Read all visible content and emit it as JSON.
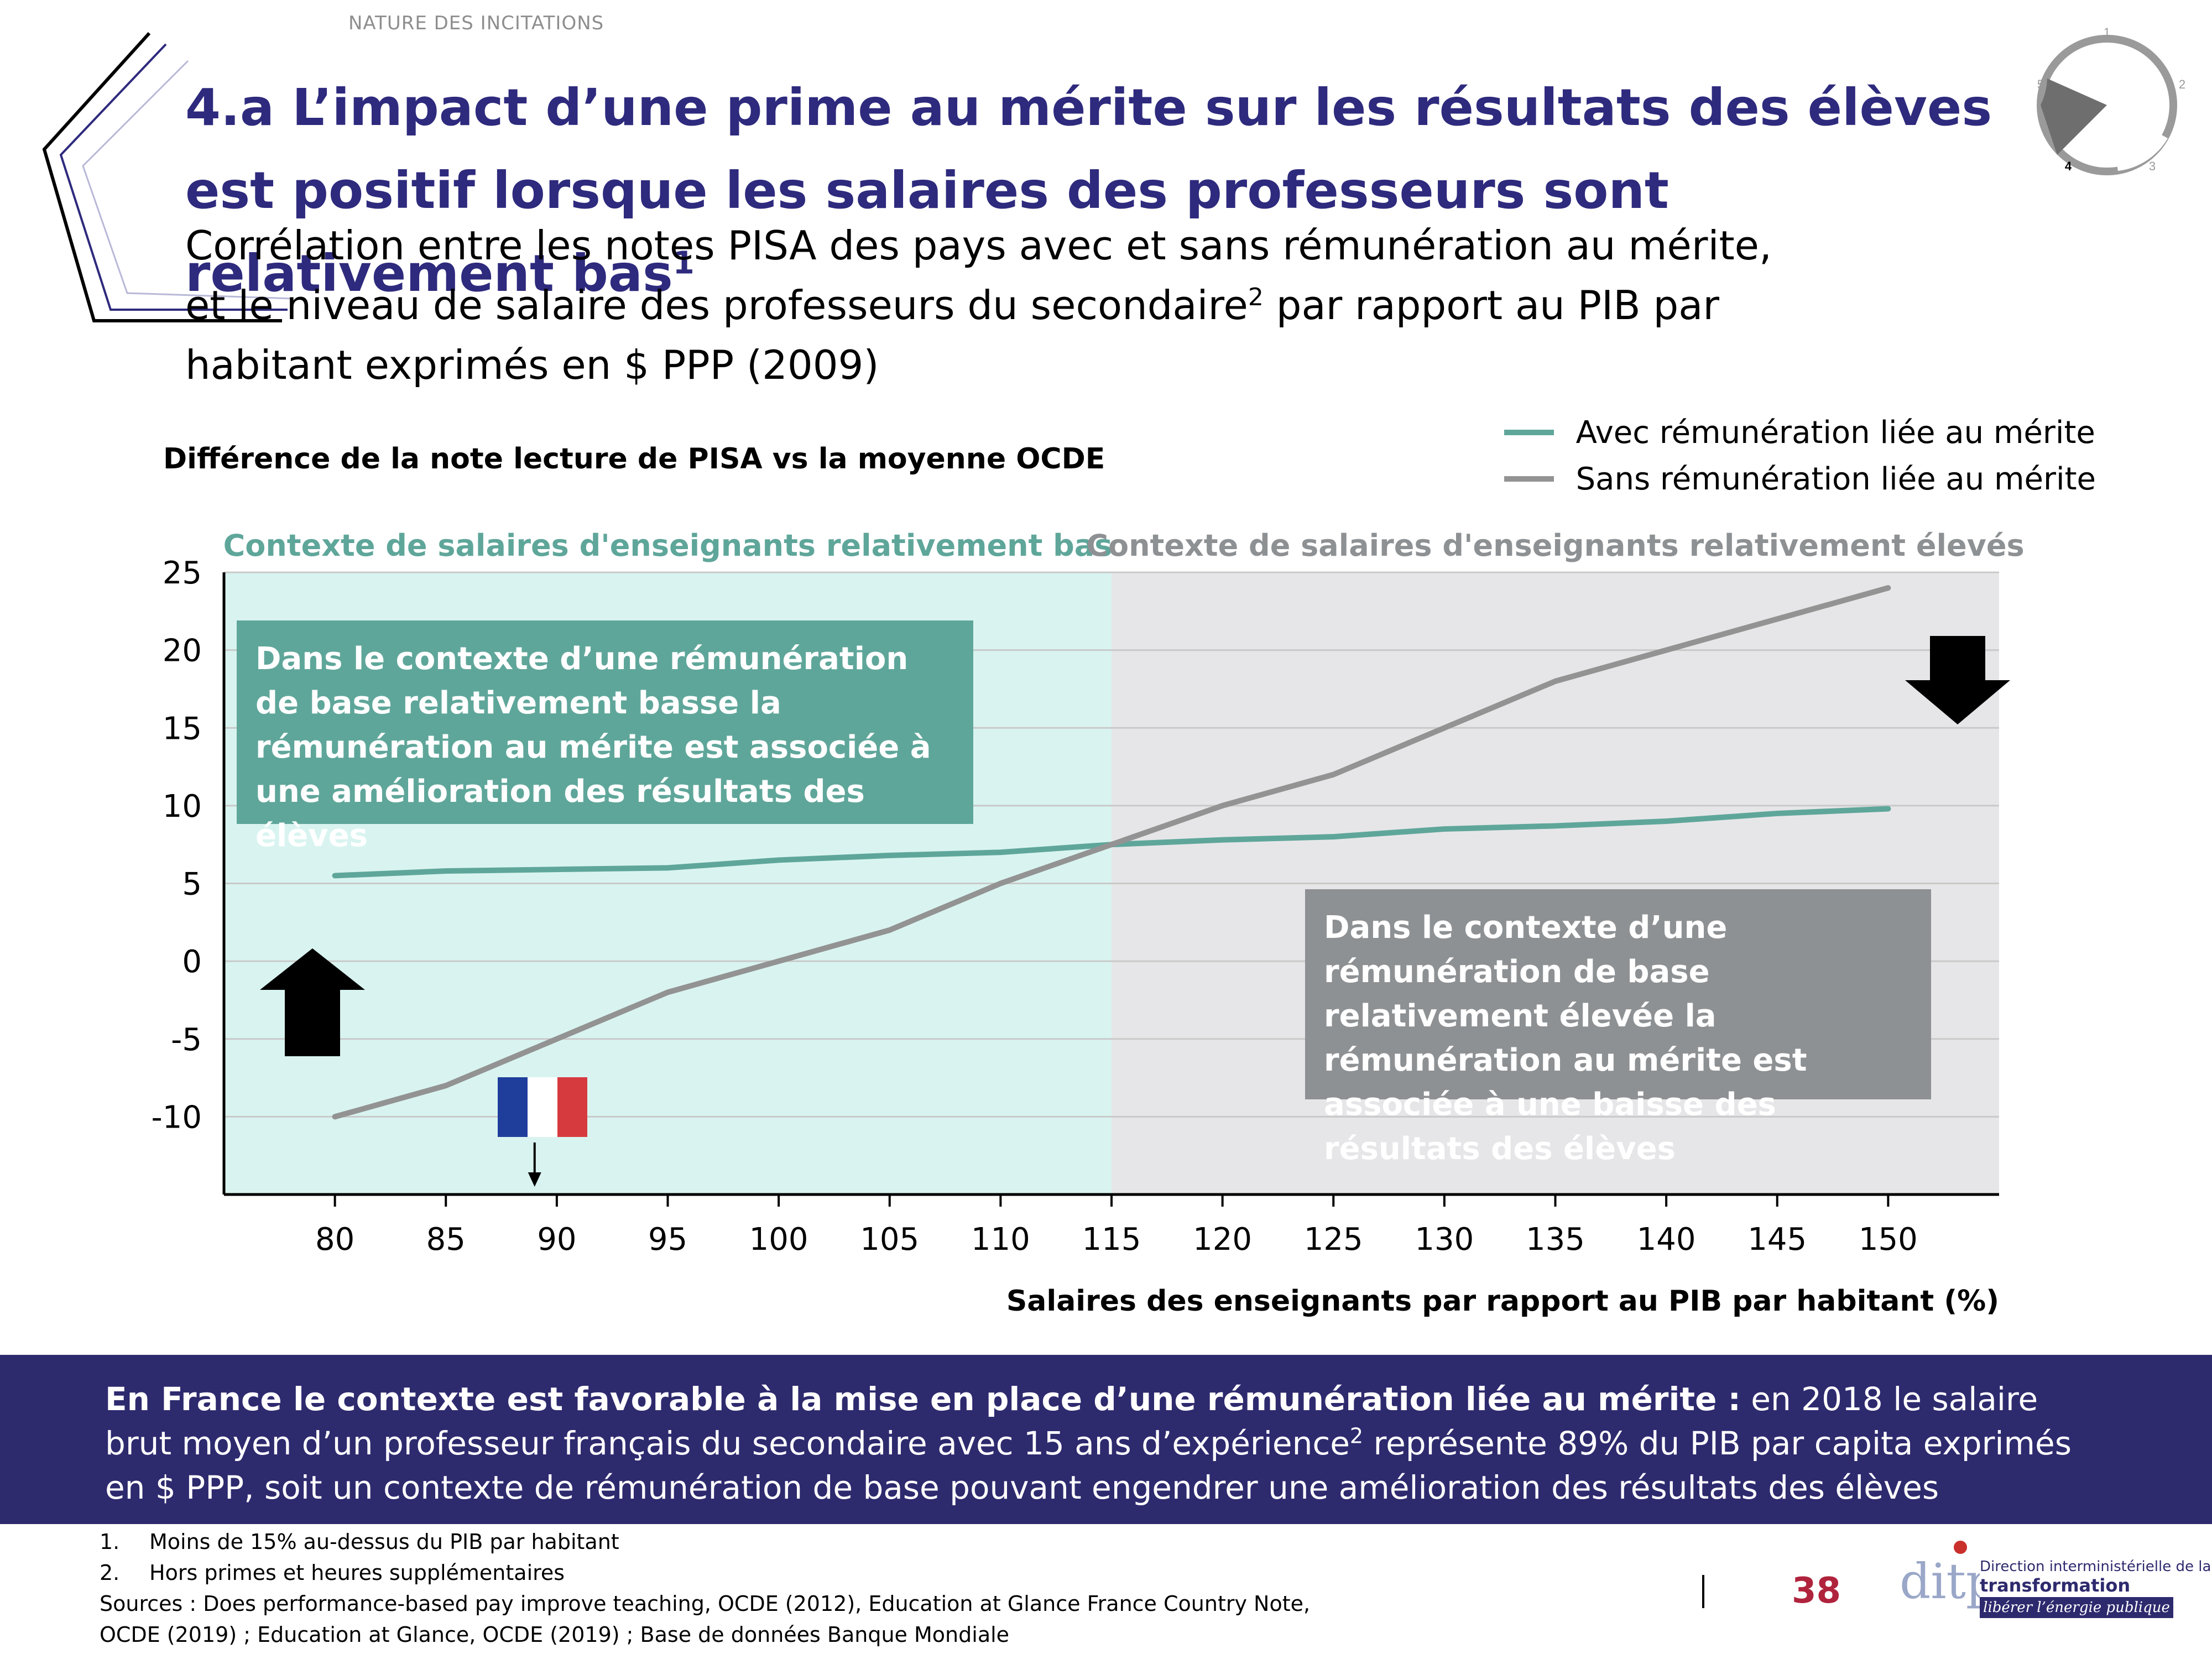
{
  "header": {
    "section_label": "NATURE DES INCITATIONS",
    "title": "4.a L’impact d’une prime au mérite sur les résultats des élèves est positif lorsque les salaires des professeurs sont relativement bas",
    "title_sup": "1",
    "subtitle_line1": "Corrélation entre les notes PISA des pays avec et sans rémunération au mérite,",
    "subtitle_line2_a": "et le niveau de salaire des professeurs du secondaire",
    "subtitle_line2_sup": "2",
    "subtitle_line2_b": " par rapport au PIB par",
    "subtitle_line3": "habitant exprimés en $ PPP (2009)",
    "progress_dial": {
      "labels": [
        "1",
        "2",
        "3",
        "4",
        "5"
      ],
      "active": "4"
    }
  },
  "chart_data": {
    "type": "line",
    "title": "",
    "ylabel": "Différence de la note lecture de PISA vs la moyenne OCDE",
    "xlabel": "Salaires des enseignants par rapport au PIB par habitant (%)",
    "x": [
      80,
      85,
      90,
      95,
      100,
      105,
      110,
      115,
      120,
      125,
      130,
      135,
      140,
      145,
      150
    ],
    "xlim": [
      75,
      155
    ],
    "ylim": [
      -15,
      25
    ],
    "yticks": [
      -10,
      -5,
      0,
      5,
      10,
      15,
      20,
      25
    ],
    "grid": true,
    "legend_position": "top-right",
    "series": [
      {
        "name": "Avec rémunération liée au mérite",
        "color": "#5fa69a",
        "values": [
          5.5,
          5.8,
          5.9,
          6.0,
          6.5,
          6.8,
          7.0,
          7.5,
          7.8,
          8.0,
          8.5,
          8.7,
          9.0,
          9.5,
          9.8
        ]
      },
      {
        "name": "Sans rémunération liée au mérite",
        "color": "#939393",
        "values": [
          -10,
          -8,
          -5,
          -2,
          0,
          2,
          5,
          7.5,
          10,
          12,
          15,
          18,
          20,
          22,
          24
        ]
      }
    ],
    "regions": [
      {
        "label": "Contexte de salaires d'enseignants relativement bas",
        "from": 75,
        "to": 115,
        "color": "#d9f4f0",
        "label_color": "#5fa69a"
      },
      {
        "label": "Contexte de salaires d'enseignants relativement élevés",
        "from": 115,
        "to": 155,
        "color": "#e6e6e8",
        "label_color": "#8e9193"
      }
    ],
    "annotations": {
      "box_low": "Dans le contexte d’une rémunération de base relativement basse la rémunération au mérite est associée à une amélioration des résultats des élèves",
      "box_high": "Dans le contexte d’une rémunération de base relativement élevée la rémunération au mérite est associée à une baisse des résultats des élèves",
      "france_marker_x": 89
    }
  },
  "banner": {
    "bold": "En France le contexte est favorable à la mise en place d’une rémunération liée au mérite :",
    "text_a": " en 2018 le salaire brut moyen d’un professeur français du secondaire avec 15 ans d’expérience",
    "sup": "2",
    "text_b": " représente 89% du PIB par capita exprimés en $ PPP, soit un contexte de rémunération de base pouvant engendrer une amélioration des résultats des élèves"
  },
  "footnotes": {
    "items": [
      {
        "num": "1.",
        "text": "Moins de 15% au-dessus du PIB par habitant"
      },
      {
        "num": "2.",
        "text": "Hors primes et heures supplémentaires"
      }
    ],
    "sources_line1": "Sources : Does performance-based pay improve teaching, OCDE (2012),  Education at Glance France Country Note,",
    "sources_line2": "OCDE (2019) ; Education at Glance, OCDE (2019) ;  Base de données Banque Mondiale"
  },
  "page_number": "38",
  "logo": {
    "mark": "ditp",
    "small": "Direction interministérielle de la",
    "big": "transformation publique",
    "tagline": "libérer l’énergie publique"
  }
}
